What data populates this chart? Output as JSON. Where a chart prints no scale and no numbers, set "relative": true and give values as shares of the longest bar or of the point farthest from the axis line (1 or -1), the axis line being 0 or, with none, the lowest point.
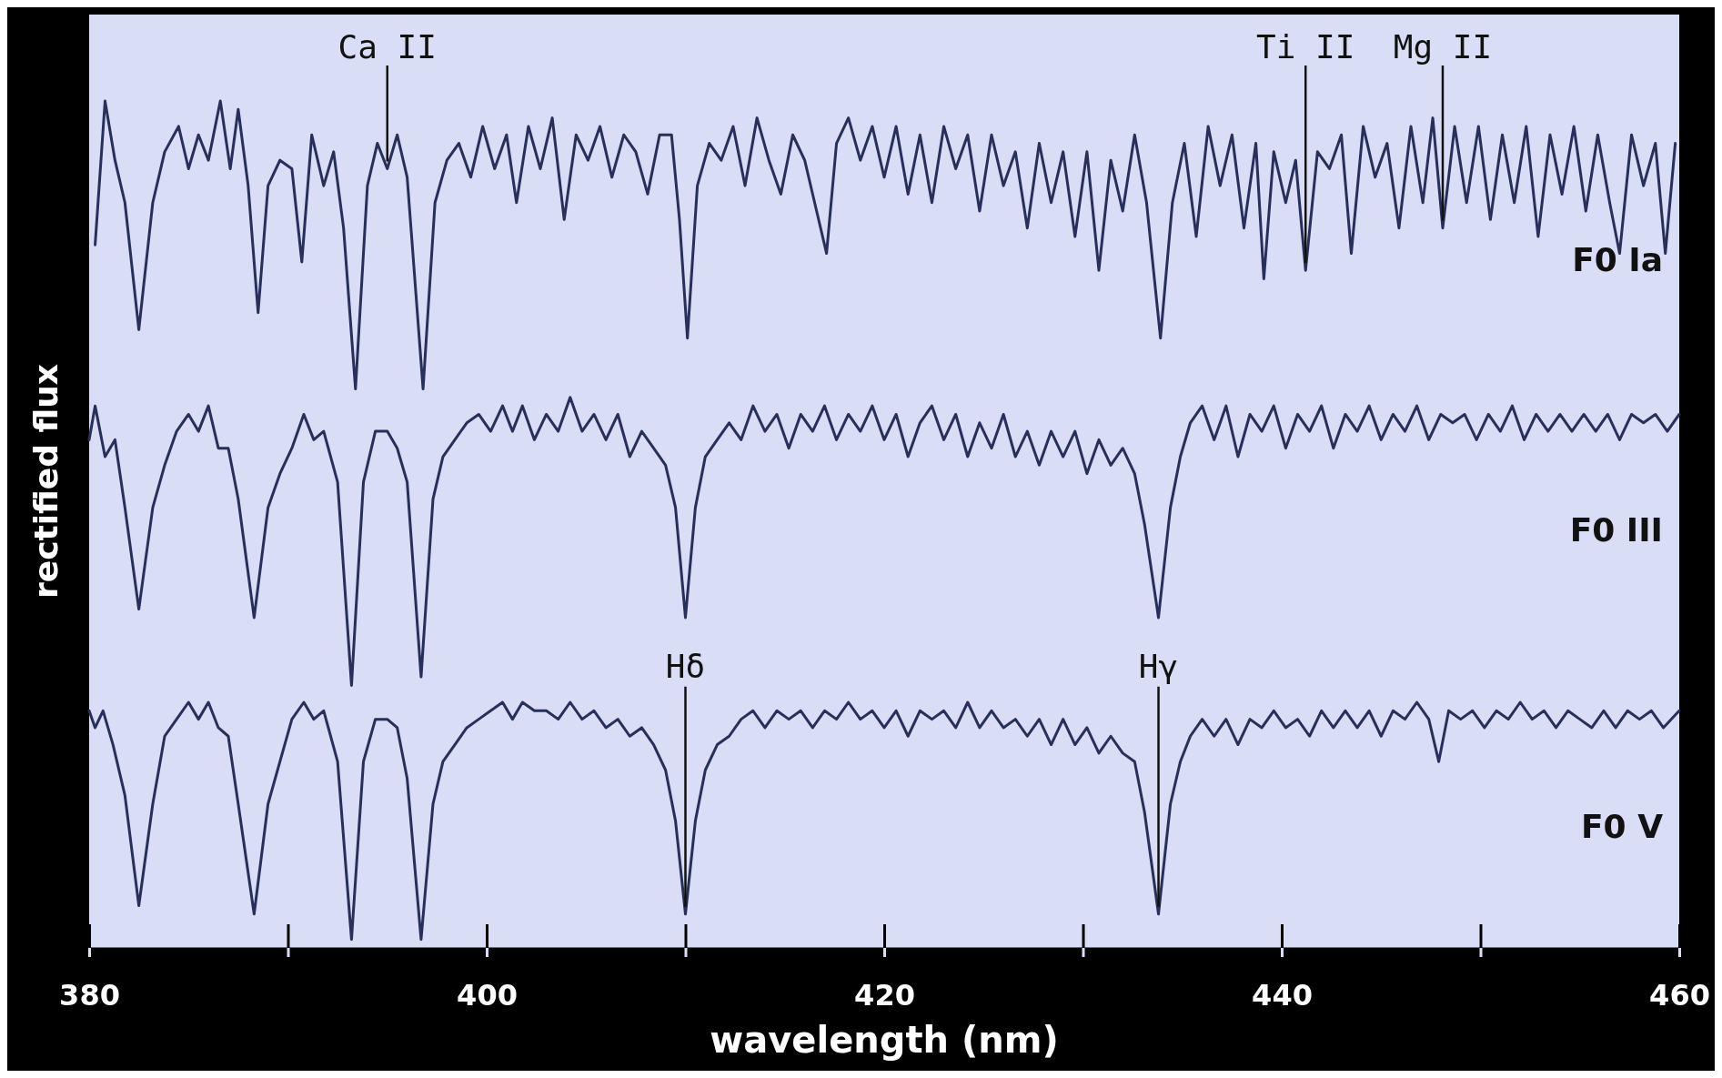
{
  "chart_data": {
    "type": "line",
    "relative": true,
    "xlabel": "wavelength (nm)",
    "ylabel": "rectified flux",
    "xlim": [
      380,
      460
    ],
    "xticks": [
      380,
      {
        "value": 390,
        "label": null
      },
      400,
      {
        "value": 410,
        "label": null
      },
      420,
      {
        "value": 430,
        "label": null
      },
      440,
      {
        "value": 450,
        "label": null
      },
      460
    ],
    "grid": false,
    "line_style": "solid",
    "annotations": [
      {
        "text": "Ca II",
        "x": 395.0,
        "y": 0.92
      },
      {
        "text": "Ti II",
        "x": 441.2,
        "y": 0.8
      },
      {
        "text": "Mg II",
        "x": 448.1,
        "y": 0.85
      },
      {
        "text": "Hδ",
        "x": 410.0,
        "y": 0.04
      },
      {
        "text": "Hγ",
        "x": 433.8,
        "y": 0.04
      }
    ],
    "series": [
      {
        "name": "F0 Ia",
        "color": "#26305a",
        "x": [
          380.3,
          380.8,
          381.3,
          381.8,
          382.5,
          383.2,
          383.8,
          384.5,
          385.0,
          385.5,
          386.0,
          386.6,
          387.1,
          387.5,
          388.0,
          388.5,
          389.0,
          389.6,
          390.2,
          390.7,
          391.2,
          391.8,
          392.3,
          392.8,
          393.4,
          394.0,
          394.5,
          395.0,
          395.5,
          396.0,
          396.8,
          397.4,
          398.0,
          398.6,
          399.2,
          399.8,
          400.4,
          401.0,
          401.5,
          402.1,
          402.7,
          403.3,
          403.9,
          404.5,
          405.1,
          405.7,
          406.3,
          406.9,
          407.5,
          408.1,
          408.7,
          409.3,
          409.7,
          410.1,
          410.6,
          411.2,
          411.8,
          412.4,
          413.0,
          413.6,
          414.2,
          414.8,
          415.4,
          416.0,
          416.6,
          417.1,
          417.6,
          418.2,
          418.8,
          419.4,
          420.0,
          420.6,
          421.2,
          421.8,
          422.4,
          423.0,
          423.6,
          424.2,
          424.8,
          425.4,
          426.0,
          426.6,
          427.2,
          427.8,
          428.4,
          429.0,
          429.6,
          430.2,
          430.8,
          431.4,
          432.0,
          432.6,
          433.2,
          433.9,
          434.5,
          435.1,
          435.7,
          436.3,
          436.9,
          437.5,
          438.1,
          438.7,
          439.1,
          439.6,
          440.2,
          440.7,
          441.2,
          441.8,
          442.4,
          443.0,
          443.5,
          444.1,
          444.7,
          445.3,
          445.9,
          446.5,
          447.1,
          447.6,
          448.1,
          448.7,
          449.3,
          449.9,
          450.5,
          451.1,
          451.7,
          452.3,
          452.9,
          453.5,
          454.1,
          454.7,
          455.3,
          455.9,
          456.5,
          457.0,
          457.6,
          458.2,
          458.8,
          459.3,
          459.8
        ],
        "values": [
          0.83,
          1.0,
          0.93,
          0.88,
          0.73,
          0.88,
          0.94,
          0.97,
          0.92,
          0.96,
          0.93,
          1.0,
          0.92,
          0.99,
          0.9,
          0.75,
          0.9,
          0.93,
          0.92,
          0.81,
          0.96,
          0.9,
          0.94,
          0.85,
          0.66,
          0.9,
          0.95,
          0.92,
          0.96,
          0.91,
          0.66,
          0.88,
          0.93,
          0.95,
          0.91,
          0.97,
          0.92,
          0.96,
          0.88,
          0.97,
          0.92,
          0.98,
          0.86,
          0.96,
          0.93,
          0.97,
          0.91,
          0.96,
          0.94,
          0.89,
          0.96,
          0.96,
          0.86,
          0.72,
          0.9,
          0.95,
          0.93,
          0.97,
          0.9,
          0.98,
          0.93,
          0.89,
          0.96,
          0.93,
          0.87,
          0.82,
          0.95,
          0.98,
          0.93,
          0.97,
          0.91,
          0.97,
          0.89,
          0.96,
          0.88,
          0.97,
          0.92,
          0.96,
          0.87,
          0.96,
          0.9,
          0.94,
          0.85,
          0.95,
          0.88,
          0.94,
          0.84,
          0.94,
          0.8,
          0.93,
          0.87,
          0.96,
          0.88,
          0.72,
          0.88,
          0.95,
          0.84,
          0.97,
          0.9,
          0.96,
          0.85,
          0.95,
          0.79,
          0.94,
          0.88,
          0.93,
          0.8,
          0.94,
          0.92,
          0.96,
          0.82,
          0.97,
          0.91,
          0.95,
          0.85,
          0.97,
          0.88,
          0.98,
          0.85,
          0.97,
          0.88,
          0.97,
          0.86,
          0.96,
          0.88,
          0.97,
          0.84,
          0.96,
          0.89,
          0.97,
          0.87,
          0.96,
          0.88,
          0.82,
          0.96,
          0.9,
          0.95,
          0.82,
          0.95
        ]
      },
      {
        "name": "F0 III",
        "color": "#26305a",
        "x": [
          380.0,
          380.3,
          380.8,
          381.3,
          381.8,
          382.5,
          383.2,
          383.8,
          384.4,
          385.0,
          385.5,
          386.0,
          386.5,
          387.0,
          387.5,
          388.3,
          389.0,
          389.6,
          390.2,
          390.8,
          391.3,
          391.8,
          392.5,
          393.2,
          393.8,
          394.4,
          395.0,
          395.5,
          396.0,
          396.7,
          397.3,
          397.8,
          398.4,
          399.0,
          399.6,
          400.2,
          400.8,
          401.3,
          401.8,
          402.4,
          403.0,
          403.6,
          404.2,
          404.8,
          405.4,
          406.0,
          406.6,
          407.2,
          407.8,
          408.4,
          409.0,
          409.5,
          410.0,
          410.5,
          411.0,
          411.6,
          412.2,
          412.8,
          413.4,
          414.0,
          414.6,
          415.2,
          415.8,
          416.4,
          417.0,
          417.6,
          418.2,
          418.8,
          419.4,
          420.0,
          420.6,
          421.2,
          421.8,
          422.4,
          423.0,
          423.6,
          424.2,
          424.8,
          425.4,
          426.0,
          426.6,
          427.2,
          427.8,
          428.4,
          429.0,
          429.6,
          430.2,
          430.8,
          431.4,
          432.0,
          432.6,
          433.1,
          433.8,
          434.4,
          434.9,
          435.4,
          436.0,
          436.6,
          437.2,
          437.8,
          438.4,
          439.0,
          439.6,
          440.2,
          440.8,
          441.4,
          442.0,
          442.6,
          443.2,
          443.8,
          444.4,
          445.0,
          445.6,
          446.2,
          446.8,
          447.4,
          448.0,
          448.6,
          449.2,
          449.8,
          450.4,
          451.0,
          451.6,
          452.2,
          452.8,
          453.4,
          454.0,
          454.6,
          455.2,
          455.8,
          456.4,
          457.0,
          457.6,
          458.2,
          458.8,
          459.4,
          460.0
        ],
        "values": [
          0.6,
          0.64,
          0.58,
          0.6,
          0.52,
          0.4,
          0.52,
          0.57,
          0.61,
          0.63,
          0.61,
          0.64,
          0.59,
          0.59,
          0.53,
          0.39,
          0.52,
          0.56,
          0.59,
          0.63,
          0.6,
          0.61,
          0.55,
          0.31,
          0.55,
          0.61,
          0.61,
          0.59,
          0.55,
          0.32,
          0.53,
          0.58,
          0.6,
          0.62,
          0.63,
          0.61,
          0.64,
          0.61,
          0.64,
          0.6,
          0.63,
          0.61,
          0.65,
          0.61,
          0.63,
          0.6,
          0.63,
          0.58,
          0.61,
          0.59,
          0.57,
          0.52,
          0.39,
          0.52,
          0.58,
          0.6,
          0.62,
          0.6,
          0.64,
          0.61,
          0.63,
          0.59,
          0.63,
          0.61,
          0.64,
          0.6,
          0.63,
          0.61,
          0.64,
          0.6,
          0.63,
          0.58,
          0.62,
          0.64,
          0.6,
          0.63,
          0.58,
          0.62,
          0.59,
          0.63,
          0.58,
          0.61,
          0.57,
          0.61,
          0.58,
          0.61,
          0.56,
          0.6,
          0.57,
          0.59,
          0.56,
          0.5,
          0.39,
          0.52,
          0.58,
          0.62,
          0.64,
          0.6,
          0.64,
          0.58,
          0.63,
          0.61,
          0.64,
          0.59,
          0.63,
          0.61,
          0.64,
          0.59,
          0.63,
          0.61,
          0.64,
          0.6,
          0.63,
          0.61,
          0.64,
          0.6,
          0.63,
          0.62,
          0.63,
          0.6,
          0.63,
          0.61,
          0.64,
          0.6,
          0.63,
          0.61,
          0.63,
          0.61,
          0.63,
          0.61,
          0.63,
          0.6,
          0.63,
          0.62,
          0.63,
          0.61,
          0.63
        ]
      },
      {
        "name": "F0 V",
        "color": "#26305a",
        "x": [
          380.0,
          380.3,
          380.7,
          381.2,
          381.8,
          382.5,
          383.2,
          383.8,
          384.4,
          385.0,
          385.5,
          386.0,
          386.5,
          387.0,
          387.5,
          388.3,
          389.0,
          389.6,
          390.2,
          390.8,
          391.3,
          391.8,
          392.5,
          393.2,
          393.8,
          394.4,
          395.0,
          395.5,
          396.0,
          396.7,
          397.3,
          397.8,
          398.4,
          399.0,
          399.6,
          400.2,
          400.8,
          401.3,
          401.8,
          402.4,
          403.0,
          403.6,
          404.2,
          404.8,
          405.4,
          406.0,
          406.6,
          407.2,
          407.8,
          408.4,
          409.0,
          409.5,
          410.0,
          410.5,
          411.0,
          411.6,
          412.2,
          412.8,
          413.4,
          414.0,
          414.6,
          415.2,
          415.8,
          416.4,
          417.0,
          417.6,
          418.2,
          418.8,
          419.4,
          420.0,
          420.6,
          421.2,
          421.8,
          422.4,
          423.0,
          423.6,
          424.2,
          424.8,
          425.4,
          426.0,
          426.6,
          427.2,
          427.8,
          428.4,
          429.0,
          429.6,
          430.2,
          430.8,
          431.4,
          432.0,
          432.6,
          433.1,
          433.8,
          434.4,
          434.9,
          435.4,
          436.0,
          436.6,
          437.2,
          437.8,
          438.4,
          439.0,
          439.6,
          440.2,
          440.8,
          441.4,
          442.0,
          442.6,
          443.2,
          443.8,
          444.4,
          445.0,
          445.6,
          446.2,
          446.8,
          447.4,
          447.9,
          448.4,
          449.0,
          449.6,
          450.2,
          450.8,
          451.4,
          452.0,
          452.6,
          453.2,
          453.8,
          454.4,
          455.0,
          455.6,
          456.2,
          456.8,
          457.4,
          458.0,
          458.6,
          459.2,
          460.0
        ],
        "values": [
          0.28,
          0.26,
          0.28,
          0.24,
          0.18,
          0.05,
          0.17,
          0.25,
          0.27,
          0.29,
          0.27,
          0.29,
          0.26,
          0.25,
          0.17,
          0.04,
          0.17,
          0.22,
          0.27,
          0.29,
          0.27,
          0.28,
          0.22,
          0.01,
          0.22,
          0.27,
          0.27,
          0.26,
          0.2,
          0.01,
          0.17,
          0.22,
          0.24,
          0.26,
          0.27,
          0.28,
          0.29,
          0.27,
          0.29,
          0.28,
          0.28,
          0.27,
          0.29,
          0.27,
          0.28,
          0.26,
          0.27,
          0.25,
          0.26,
          0.24,
          0.21,
          0.15,
          0.04,
          0.15,
          0.21,
          0.24,
          0.25,
          0.27,
          0.28,
          0.26,
          0.28,
          0.27,
          0.28,
          0.26,
          0.28,
          0.27,
          0.29,
          0.27,
          0.28,
          0.26,
          0.28,
          0.25,
          0.28,
          0.27,
          0.28,
          0.26,
          0.29,
          0.26,
          0.28,
          0.26,
          0.27,
          0.25,
          0.27,
          0.24,
          0.27,
          0.24,
          0.26,
          0.23,
          0.25,
          0.23,
          0.22,
          0.16,
          0.04,
          0.17,
          0.22,
          0.25,
          0.27,
          0.25,
          0.27,
          0.24,
          0.27,
          0.26,
          0.28,
          0.26,
          0.27,
          0.25,
          0.28,
          0.26,
          0.28,
          0.26,
          0.28,
          0.25,
          0.28,
          0.27,
          0.29,
          0.27,
          0.22,
          0.28,
          0.27,
          0.28,
          0.26,
          0.28,
          0.27,
          0.29,
          0.27,
          0.28,
          0.26,
          0.28,
          0.27,
          0.26,
          0.28,
          0.26,
          0.28,
          0.27,
          0.28,
          0.26,
          0.28
        ]
      }
    ]
  }
}
